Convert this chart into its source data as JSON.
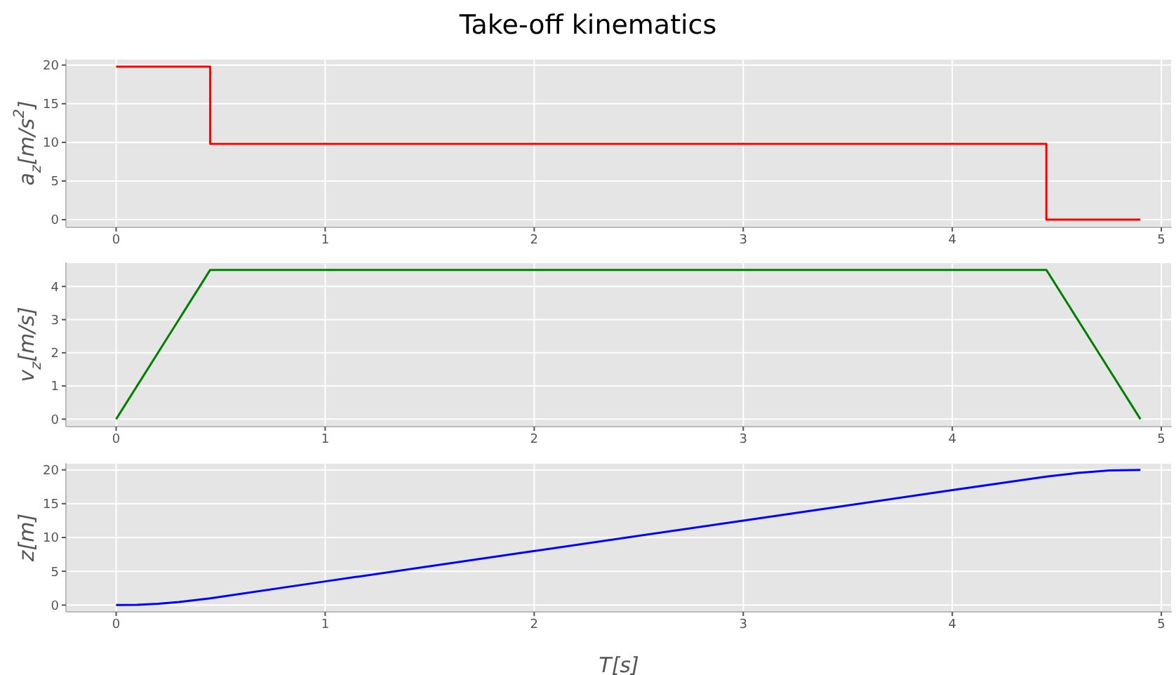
{
  "chart_data": [
    {
      "type": "step",
      "title": "Take-off kinematics",
      "ylabel": "a$_{z}$[m/s$^{2}$]",
      "x": [
        0,
        0.45,
        4.45,
        4.9
      ],
      "series": [
        {
          "color": "#ff0000",
          "values": [
            19.8,
            9.8,
            0,
            0
          ]
        }
      ],
      "xlim": [
        -0.24,
        5.05
      ],
      "xticks": [
        0,
        1,
        2,
        3,
        4,
        5
      ],
      "ylim": [
        -0.99,
        20.79
      ],
      "yticks": [
        0,
        5,
        10,
        15,
        20
      ],
      "grid": true
    },
    {
      "type": "line",
      "ylabel": "v$_{z}$[m/s]",
      "x": [
        0,
        0.45,
        4.45,
        4.9
      ],
      "series": [
        {
          "color": "#008000",
          "values": [
            0,
            4.5,
            4.5,
            0
          ]
        }
      ],
      "xlim": [
        -0.24,
        5.05
      ],
      "xticks": [
        0,
        1,
        2,
        3,
        4,
        5
      ],
      "ylim": [
        -0.225,
        4.725
      ],
      "yticks": [
        0,
        1,
        2,
        3,
        4
      ],
      "grid": true
    },
    {
      "type": "line",
      "xlabel": "T[s]",
      "ylabel": "z[m]",
      "x": [
        0,
        0.1,
        0.2,
        0.3,
        0.45,
        1,
        2,
        3,
        4,
        4.45,
        4.6,
        4.75,
        4.9
      ],
      "series": [
        {
          "color": "#0000ff",
          "values": [
            0,
            0.05,
            0.2,
            0.45,
            1.0,
            3.5,
            8.0,
            12.5,
            17.0,
            19.0,
            19.55,
            19.9,
            20.0
          ]
        }
      ],
      "xlim": [
        -0.24,
        5.05
      ],
      "xticks": [
        0,
        1,
        2,
        3,
        4,
        5
      ],
      "ylim": [
        -1,
        21
      ],
      "yticks": [
        0,
        5,
        10,
        15,
        20
      ],
      "grid": true
    }
  ]
}
